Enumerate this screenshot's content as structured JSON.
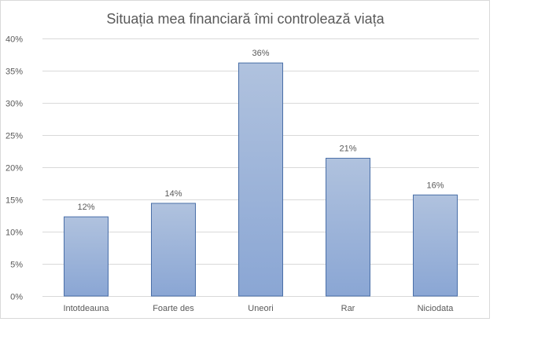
{
  "chart_data": {
    "type": "bar",
    "title": "Situația mea financiară îmi controlează viața",
    "xlabel": "",
    "ylabel": "",
    "categories": [
      "Intotdeauna",
      "Foarte des",
      "Uneori",
      "Rar",
      "Niciodata"
    ],
    "values": [
      12.3,
      14.4,
      36.2,
      21.4,
      15.7
    ],
    "data_labels": [
      "12%",
      "14%",
      "36%",
      "21%",
      "16%"
    ],
    "y_ticks": [
      "0%",
      "5%",
      "10%",
      "15%",
      "20%",
      "25%",
      "30%",
      "35%",
      "40%"
    ],
    "ylim": [
      0,
      40
    ],
    "grid": true,
    "legend": "none",
    "colors": {
      "bar_top": "#b0c2de",
      "bar_bottom": "#8aa6d4",
      "bar_border": "#4a6fa8",
      "grid": "#d9d9d9",
      "text": "#595959"
    }
  }
}
